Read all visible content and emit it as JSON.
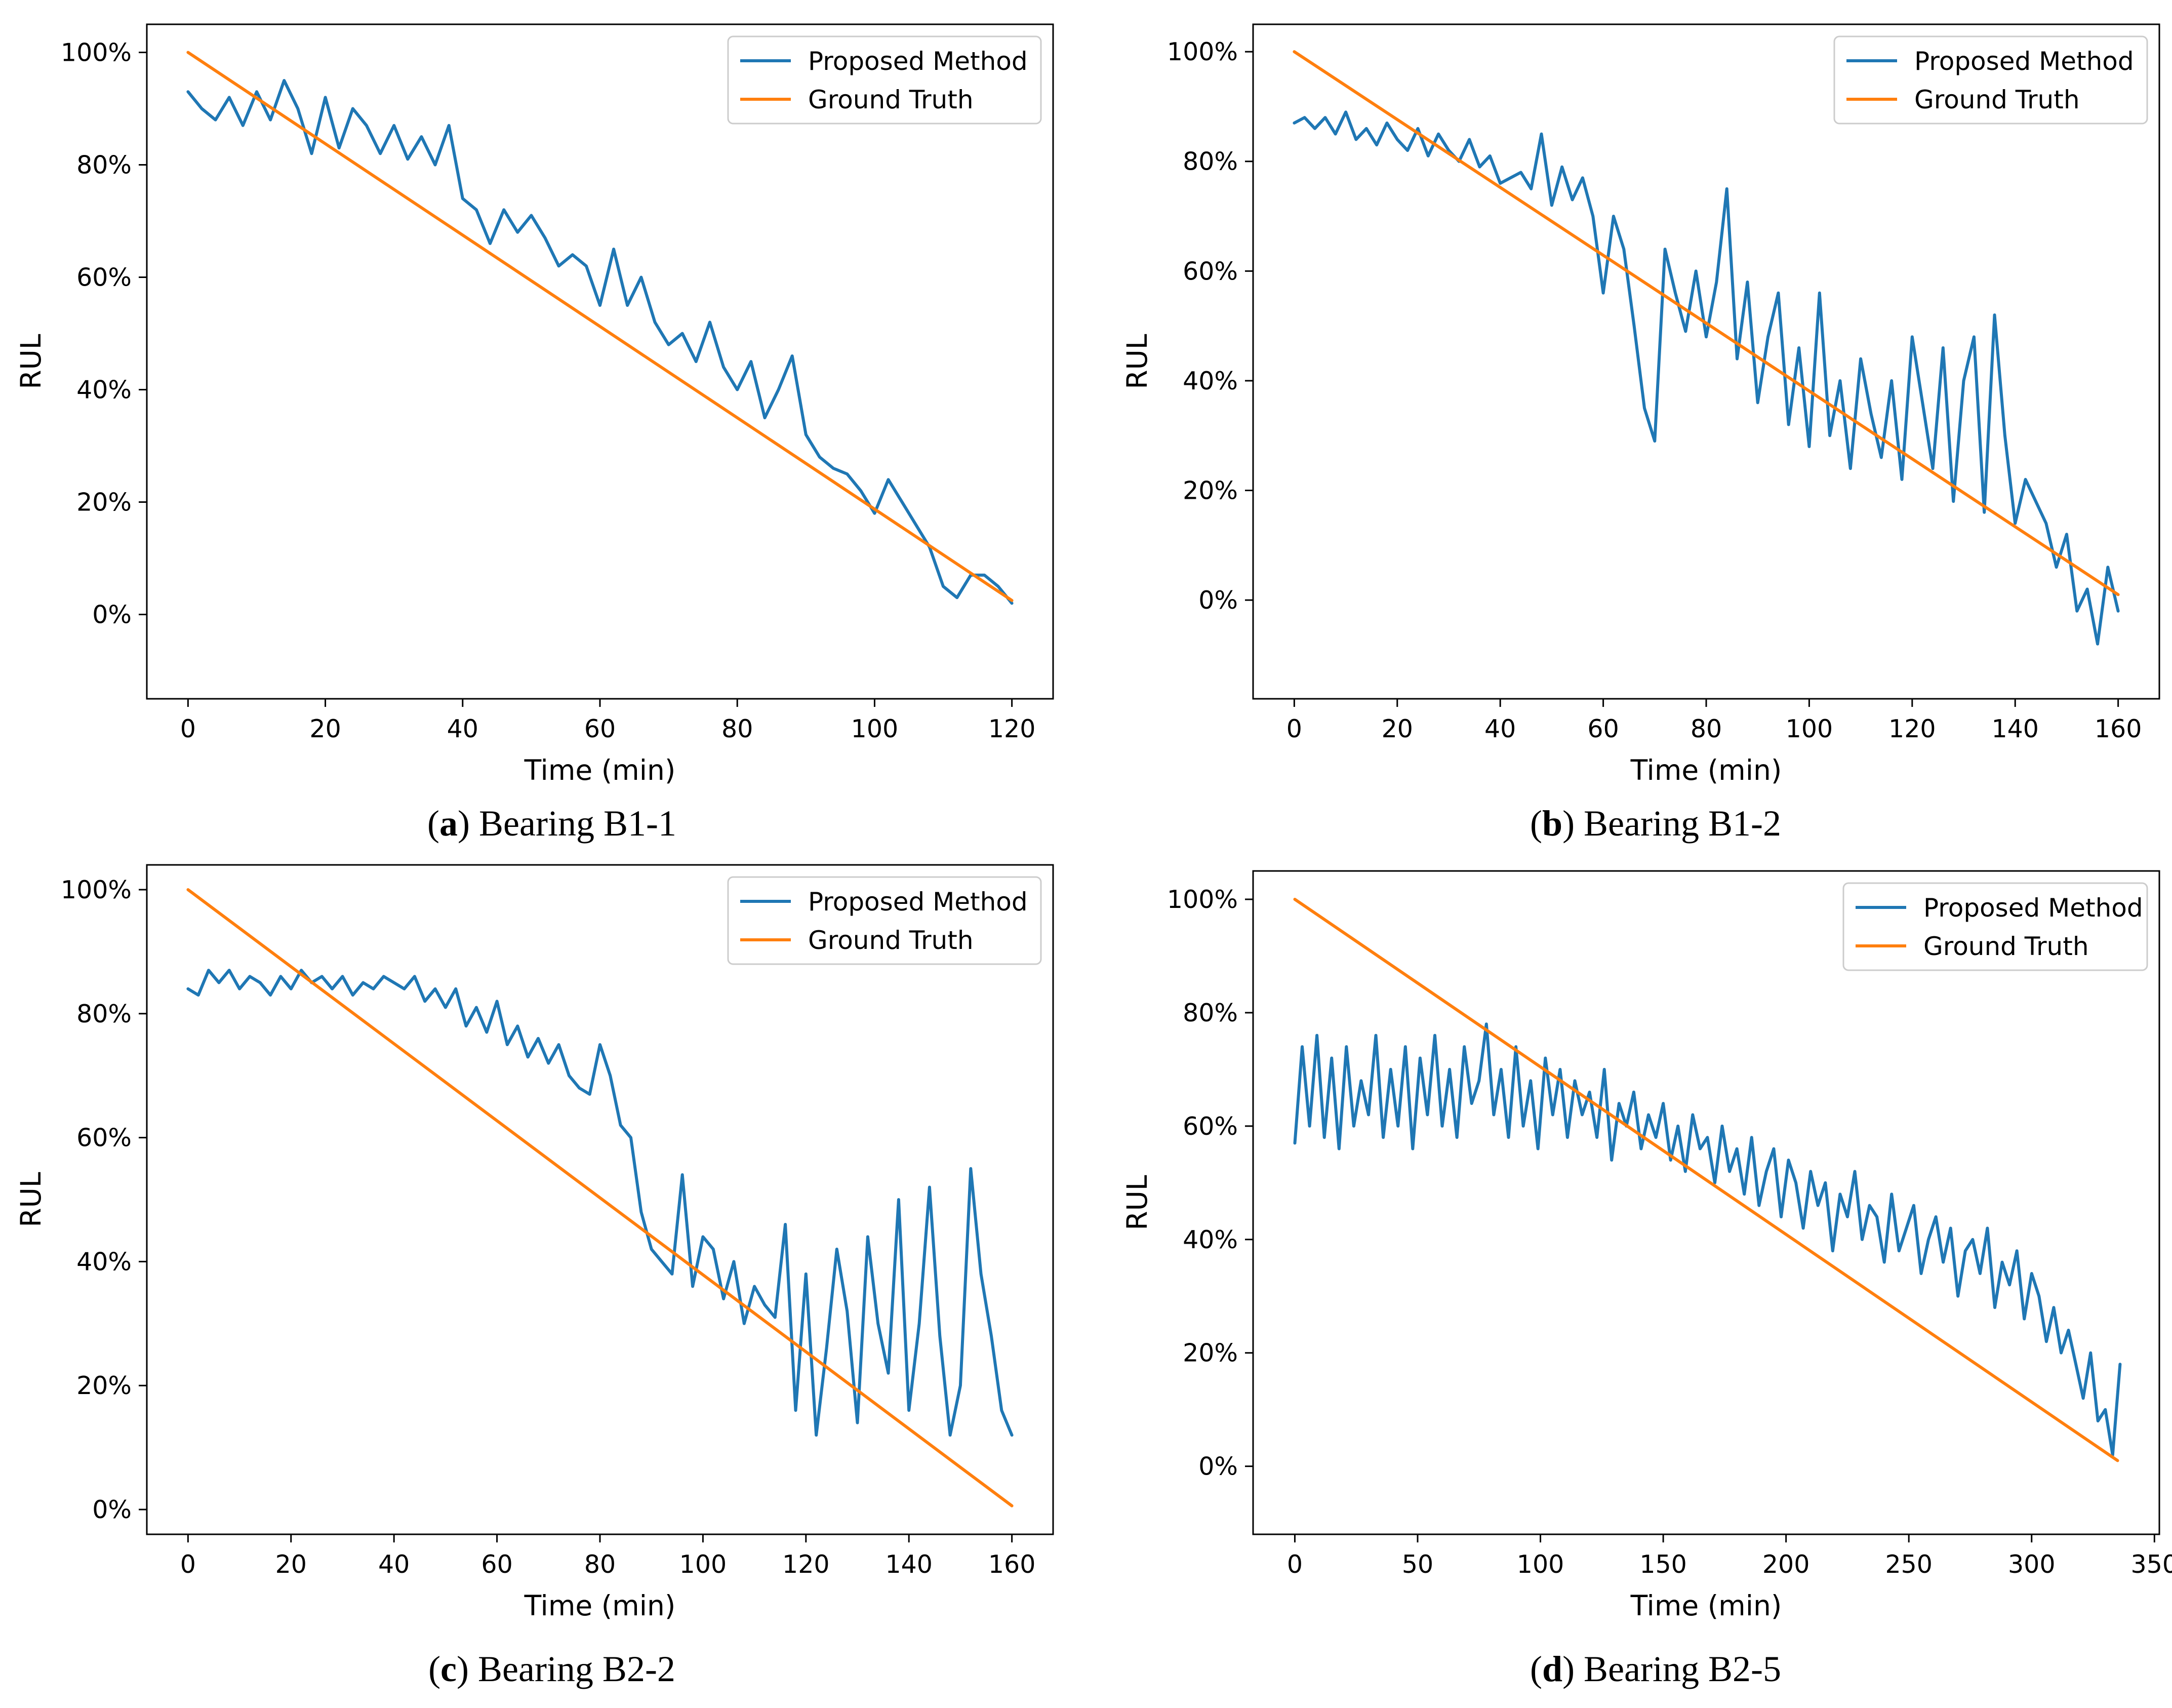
{
  "colors": {
    "proposed": "#1f77b4",
    "truth": "#ff7f0e",
    "axis": "#000000",
    "legend_border": "#cccccc"
  },
  "chart_data": [
    {
      "type": "line",
      "caption": {
        "letter": "a",
        "text": " Bearing B1-1"
      },
      "xlabel": "Time (min)",
      "ylabel": "RUL",
      "xlim": [
        -6,
        126
      ],
      "ylim": [
        -15,
        105
      ],
      "xticks": [
        0,
        20,
        40,
        60,
        80,
        100,
        120
      ],
      "yticks": [
        0,
        20,
        40,
        60,
        80,
        100
      ],
      "ytick_labels": [
        "0%",
        "20%",
        "40%",
        "60%",
        "80%",
        "100%"
      ],
      "legend": {
        "location": "top-right",
        "entries": [
          "Proposed Method",
          "Ground Truth"
        ]
      },
      "series": [
        {
          "name": "Proposed Method",
          "x": [
            0,
            2,
            4,
            6,
            8,
            10,
            12,
            14,
            16,
            18,
            20,
            22,
            24,
            26,
            28,
            30,
            32,
            34,
            36,
            38,
            40,
            42,
            44,
            46,
            48,
            50,
            52,
            54,
            56,
            58,
            60,
            62,
            64,
            66,
            68,
            70,
            72,
            74,
            76,
            78,
            80,
            82,
            84,
            86,
            88,
            90,
            92,
            94,
            96,
            98,
            100,
            102,
            104,
            106,
            108,
            110,
            112,
            114,
            116,
            118,
            120
          ],
          "y": [
            93,
            90,
            88,
            92,
            87,
            93,
            88,
            95,
            90,
            82,
            92,
            83,
            90,
            87,
            82,
            87,
            81,
            85,
            80,
            87,
            74,
            72,
            66,
            72,
            68,
            71,
            67,
            62,
            64,
            62,
            55,
            65,
            55,
            60,
            52,
            48,
            50,
            45,
            52,
            44,
            40,
            45,
            35,
            40,
            46,
            32,
            28,
            26,
            25,
            22,
            18,
            24,
            20,
            16,
            12,
            5,
            3,
            7,
            7,
            5,
            2
          ]
        },
        {
          "name": "Ground Truth",
          "x": [
            0,
            120
          ],
          "y": [
            100,
            2.5
          ]
        }
      ]
    },
    {
      "type": "line",
      "caption": {
        "letter": "b",
        "text": " Bearing B1-2"
      },
      "xlabel": "Time (min)",
      "ylabel": "RUL",
      "xlim": [
        -8,
        168
      ],
      "ylim": [
        -18,
        105
      ],
      "xticks": [
        0,
        20,
        40,
        60,
        80,
        100,
        120,
        140,
        160
      ],
      "yticks": [
        0,
        20,
        40,
        60,
        80,
        100
      ],
      "ytick_labels": [
        "0%",
        "20%",
        "40%",
        "60%",
        "80%",
        "100%"
      ],
      "legend": {
        "location": "top-right",
        "entries": [
          "Proposed Method",
          "Ground Truth"
        ]
      },
      "series": [
        {
          "name": "Proposed Method",
          "x": [
            0,
            2,
            4,
            6,
            8,
            10,
            12,
            14,
            16,
            18,
            20,
            22,
            24,
            26,
            28,
            30,
            32,
            34,
            36,
            38,
            40,
            42,
            44,
            46,
            48,
            50,
            52,
            54,
            56,
            58,
            60,
            62,
            64,
            66,
            68,
            70,
            72,
            74,
            76,
            78,
            80,
            82,
            84,
            86,
            88,
            90,
            92,
            94,
            96,
            98,
            100,
            102,
            104,
            106,
            108,
            110,
            112,
            114,
            116,
            118,
            120,
            122,
            124,
            126,
            128,
            130,
            132,
            134,
            136,
            138,
            140,
            142,
            144,
            146,
            148,
            150,
            152,
            154,
            156,
            158,
            160
          ],
          "y": [
            87,
            88,
            86,
            88,
            85,
            89,
            84,
            86,
            83,
            87,
            84,
            82,
            86,
            81,
            85,
            82,
            80,
            84,
            79,
            81,
            76,
            77,
            78,
            75,
            85,
            72,
            79,
            73,
            77,
            70,
            56,
            70,
            64,
            50,
            35,
            29,
            64,
            56,
            49,
            60,
            48,
            58,
            75,
            44,
            58,
            36,
            48,
            56,
            32,
            46,
            28,
            56,
            30,
            40,
            24,
            44,
            34,
            26,
            40,
            22,
            48,
            36,
            24,
            46,
            18,
            40,
            48,
            16,
            52,
            30,
            14,
            22,
            18,
            14,
            6,
            12,
            -2,
            2,
            -8,
            6,
            -2
          ]
        },
        {
          "name": "Ground Truth",
          "x": [
            0,
            160
          ],
          "y": [
            100,
            1
          ]
        }
      ]
    },
    {
      "type": "line",
      "caption": {
        "letter": "c",
        "text": " Bearing B2-2"
      },
      "xlabel": "Time (min)",
      "ylabel": "RUL",
      "xlim": [
        -8,
        168
      ],
      "ylim": [
        -4,
        104
      ],
      "xticks": [
        0,
        20,
        40,
        60,
        80,
        100,
        120,
        140,
        160
      ],
      "yticks": [
        0,
        20,
        40,
        60,
        80,
        100
      ],
      "ytick_labels": [
        "0%",
        "20%",
        "40%",
        "60%",
        "80%",
        "100%"
      ],
      "legend": {
        "location": "top-right",
        "entries": [
          "Proposed Method",
          "Ground Truth"
        ]
      },
      "series": [
        {
          "name": "Proposed Method",
          "x": [
            0,
            2,
            4,
            6,
            8,
            10,
            12,
            14,
            16,
            18,
            20,
            22,
            24,
            26,
            28,
            30,
            32,
            34,
            36,
            38,
            40,
            42,
            44,
            46,
            48,
            50,
            52,
            54,
            56,
            58,
            60,
            62,
            64,
            66,
            68,
            70,
            72,
            74,
            76,
            78,
            80,
            82,
            84,
            86,
            88,
            90,
            92,
            94,
            96,
            98,
            100,
            102,
            104,
            106,
            108,
            110,
            112,
            114,
            116,
            118,
            120,
            122,
            124,
            126,
            128,
            130,
            132,
            134,
            136,
            138,
            140,
            142,
            144,
            146,
            148,
            150,
            152,
            154,
            156,
            158,
            160
          ],
          "y": [
            84,
            83,
            87,
            85,
            87,
            84,
            86,
            85,
            83,
            86,
            84,
            87,
            85,
            86,
            84,
            86,
            83,
            85,
            84,
            86,
            85,
            84,
            86,
            82,
            84,
            81,
            84,
            78,
            81,
            77,
            82,
            75,
            78,
            73,
            76,
            72,
            75,
            70,
            68,
            67,
            75,
            70,
            62,
            60,
            48,
            42,
            40,
            38,
            54,
            36,
            44,
            42,
            34,
            40,
            30,
            36,
            33,
            31,
            46,
            16,
            38,
            12,
            26,
            42,
            32,
            14,
            44,
            30,
            22,
            50,
            16,
            30,
            52,
            28,
            12,
            20,
            55,
            38,
            28,
            16,
            12
          ]
        },
        {
          "name": "Ground Truth",
          "x": [
            0,
            160
          ],
          "y": [
            100,
            0.6
          ]
        }
      ]
    },
    {
      "type": "line",
      "caption": {
        "letter": "d",
        "text": " Bearing B2-5"
      },
      "xlabel": "Time (min)",
      "ylabel": "RUL",
      "xlim": [
        -17,
        352
      ],
      "ylim": [
        -12,
        105
      ],
      "xticks": [
        0,
        50,
        100,
        150,
        200,
        250,
        300,
        350
      ],
      "yticks": [
        0,
        20,
        40,
        60,
        80,
        100
      ],
      "ytick_labels": [
        "0%",
        "20%",
        "40%",
        "60%",
        "80%",
        "100%"
      ],
      "legend": {
        "location": "top-right",
        "entries": [
          "Proposed Method",
          "Ground Truth"
        ]
      },
      "series": [
        {
          "name": "Proposed Method",
          "x": [
            0,
            3,
            6,
            9,
            12,
            15,
            18,
            21,
            24,
            27,
            30,
            33,
            36,
            39,
            42,
            45,
            48,
            51,
            54,
            57,
            60,
            63,
            66,
            69,
            72,
            75,
            78,
            81,
            84,
            87,
            90,
            93,
            96,
            99,
            102,
            105,
            108,
            111,
            114,
            117,
            120,
            123,
            126,
            129,
            132,
            135,
            138,
            141,
            144,
            147,
            150,
            153,
            156,
            159,
            162,
            165,
            168,
            171,
            174,
            177,
            180,
            183,
            186,
            189,
            192,
            195,
            198,
            201,
            204,
            207,
            210,
            213,
            216,
            219,
            222,
            225,
            228,
            231,
            234,
            237,
            240,
            243,
            246,
            249,
            252,
            255,
            258,
            261,
            264,
            267,
            270,
            273,
            276,
            279,
            282,
            285,
            288,
            291,
            294,
            297,
            300,
            303,
            306,
            309,
            312,
            315,
            318,
            321,
            324,
            327,
            330,
            333,
            336
          ],
          "y": [
            57,
            74,
            60,
            76,
            58,
            72,
            56,
            74,
            60,
            68,
            62,
            76,
            58,
            70,
            60,
            74,
            56,
            72,
            62,
            76,
            60,
            70,
            58,
            74,
            64,
            68,
            78,
            62,
            70,
            58,
            74,
            60,
            68,
            56,
            72,
            62,
            70,
            58,
            68,
            62,
            66,
            58,
            70,
            54,
            64,
            60,
            66,
            56,
            62,
            58,
            64,
            54,
            60,
            52,
            62,
            56,
            58,
            50,
            60,
            52,
            56,
            48,
            58,
            46,
            52,
            56,
            44,
            54,
            50,
            42,
            52,
            46,
            50,
            38,
            48,
            44,
            52,
            40,
            46,
            44,
            36,
            48,
            38,
            42,
            46,
            34,
            40,
            44,
            36,
            42,
            30,
            38,
            40,
            34,
            42,
            28,
            36,
            32,
            38,
            26,
            34,
            30,
            22,
            28,
            20,
            24,
            18,
            12,
            20,
            8,
            10,
            2,
            18
          ]
        },
        {
          "name": "Ground Truth",
          "x": [
            0,
            335
          ],
          "y": [
            100,
            1
          ]
        }
      ]
    }
  ]
}
